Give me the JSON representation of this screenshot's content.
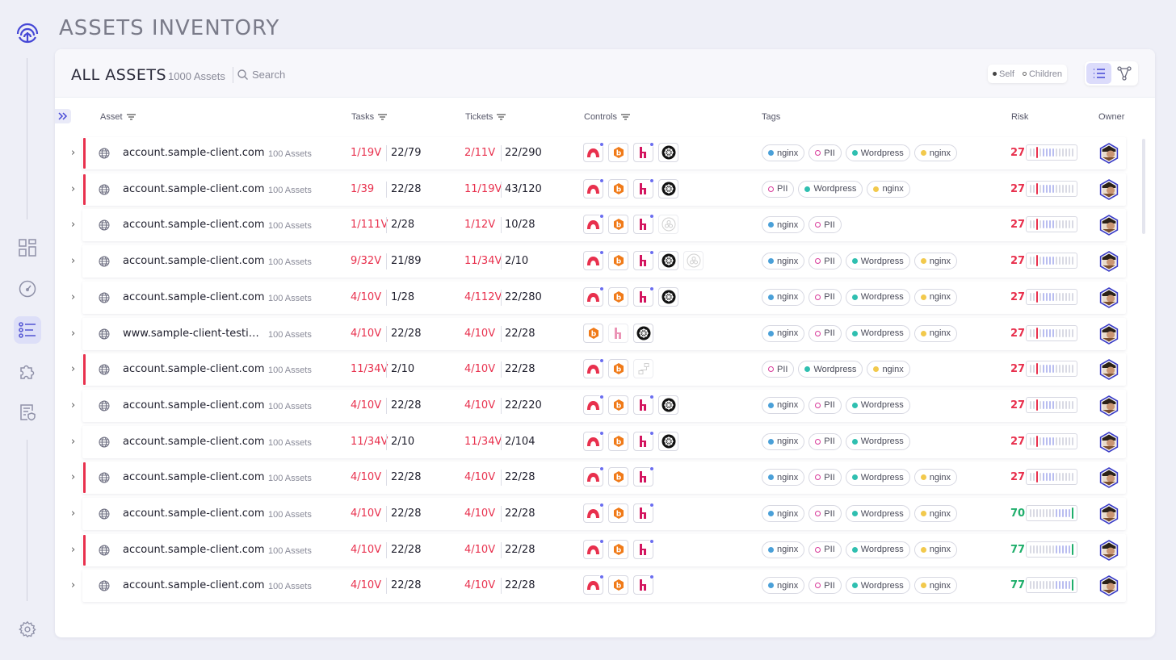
{
  "page": {
    "title": "ASSETS INVENTORY"
  },
  "card": {
    "title": "ALL ASSETS",
    "count": "1000 Assets",
    "search_label": "Search",
    "scope": {
      "self": "Self",
      "children": "Children"
    },
    "view": {
      "active": "list"
    }
  },
  "columns": {
    "asset": "Asset",
    "tasks": "Tasks",
    "tickets": "Tickets",
    "controls": "Controls",
    "tags": "Tags",
    "risk": "Risk",
    "owner": "Owner"
  },
  "sidebar": {
    "items": [
      {
        "icon": "dashboard-grid-icon"
      },
      {
        "icon": "speedometer-icon"
      },
      {
        "icon": "list-icon",
        "active": true
      },
      {
        "icon": "puzzle-icon"
      },
      {
        "icon": "shield-document-icon"
      }
    ],
    "footer_icon": "settings-gear-icon"
  },
  "colors": {
    "accent": "#6a6df0",
    "danger": "#e8304d",
    "success": "#1fae6b",
    "tag_nginx": "#4aa0d8",
    "tag_wordpress": "#2fbfb0",
    "tag_nginx_alt": "#f2c94c",
    "tag_pii": "#d93a9a"
  },
  "rows": [
    {
      "flag": true,
      "name": "account.sample-client.com",
      "count": "100 Assets",
      "task_red": "1/19V",
      "task_total": "22/79",
      "ticket_red": "2/11V",
      "ticket_total": "22/290",
      "controls": [
        "redhat",
        "bugcrowd",
        "hackerone",
        "kubernetes"
      ],
      "tags": [
        [
          "nginx",
          "#4aa0d8"
        ],
        [
          "PII",
          "pii"
        ],
        [
          "Wordpress",
          "#2fbfb0"
        ],
        [
          "nginx",
          "#f2c94c"
        ]
      ],
      "risk": "27",
      "risk_level": "high"
    },
    {
      "flag": true,
      "name": "account.sample-client.com",
      "count": "100 Assets",
      "task_red": "1/39",
      "task_total": "22/28",
      "ticket_red": "11/19V",
      "ticket_total": "43/120",
      "controls": [
        "redhat",
        "bugcrowd",
        "hackerone",
        "kubernetes"
      ],
      "tags": [
        [
          "PII",
          "pii"
        ],
        [
          "Wordpress",
          "#2fbfb0"
        ],
        [
          "nginx",
          "#f2c94c"
        ]
      ],
      "risk": "27",
      "risk_level": "high"
    },
    {
      "flag": false,
      "name": "account.sample-client.com",
      "count": "100 Assets",
      "task_red": "1/111V",
      "task_total": "2/28",
      "ticket_red": "1/12V",
      "ticket_total": "10/28",
      "controls": [
        "redhat",
        "bugcrowd",
        "hackerone",
        "other-dim"
      ],
      "tags": [
        [
          "nginx",
          "#4aa0d8"
        ],
        [
          "PII",
          "pii"
        ]
      ],
      "risk": "27",
      "risk_level": "high"
    },
    {
      "flag": false,
      "name": "account.sample-client.com",
      "count": "100 Assets",
      "task_red": "9/32V",
      "task_total": "21/89",
      "ticket_red": "11/34V",
      "ticket_total": "2/10",
      "controls": [
        "redhat",
        "bugcrowd",
        "hackerone",
        "kubernetes",
        "other-dim"
      ],
      "tags": [
        [
          "nginx",
          "#4aa0d8"
        ],
        [
          "PII",
          "pii"
        ],
        [
          "Wordpress",
          "#2fbfb0"
        ],
        [
          "nginx",
          "#f2c94c"
        ]
      ],
      "risk": "27",
      "risk_level": "high"
    },
    {
      "flag": false,
      "name": "account.sample-client.com",
      "count": "100 Assets",
      "task_red": "4/10V",
      "task_total": "1/28",
      "ticket_red": "4/112V",
      "ticket_total": "22/280",
      "controls": [
        "redhat",
        "bugcrowd",
        "hackerone",
        "kubernetes"
      ],
      "tags": [
        [
          "nginx",
          "#4aa0d8"
        ],
        [
          "PII",
          "pii"
        ],
        [
          "Wordpress",
          "#2fbfb0"
        ],
        [
          "nginx",
          "#f2c94c"
        ]
      ],
      "risk": "27",
      "risk_level": "high"
    },
    {
      "flag": false,
      "name": "www.sample-client-testin…",
      "count": "100 Assets",
      "task_red": "4/10V",
      "task_total": "22/28",
      "ticket_red": "4/10V",
      "ticket_total": "22/28",
      "controls": [
        "bugcrowd",
        "hackerone-dim",
        "kubernetes"
      ],
      "tags": [
        [
          "nginx",
          "#4aa0d8"
        ],
        [
          "PII",
          "pii"
        ],
        [
          "Wordpress",
          "#2fbfb0"
        ],
        [
          "nginx",
          "#f2c94c"
        ]
      ],
      "risk": "27",
      "risk_level": "high"
    },
    {
      "flag": true,
      "name": "account.sample-client.com",
      "count": "100 Assets",
      "task_red": "11/34V",
      "task_total": "2/10",
      "ticket_red": "4/10V",
      "ticket_total": "22/28",
      "controls": [
        "redhat",
        "bugcrowd",
        "flow-dim"
      ],
      "tags": [
        [
          "PII",
          "pii"
        ],
        [
          "Wordpress",
          "#2fbfb0"
        ],
        [
          "nginx",
          "#f2c94c"
        ]
      ],
      "risk": "27",
      "risk_level": "high"
    },
    {
      "flag": false,
      "name": "account.sample-client.com",
      "count": "100 Assets",
      "task_red": "4/10V",
      "task_total": "22/28",
      "ticket_red": "4/10V",
      "ticket_total": "22/220",
      "controls": [
        "redhat",
        "bugcrowd",
        "hackerone",
        "kubernetes"
      ],
      "tags": [
        [
          "nginx",
          "#4aa0d8"
        ],
        [
          "PII",
          "pii"
        ],
        [
          "Wordpress",
          "#2fbfb0"
        ]
      ],
      "risk": "27",
      "risk_level": "high"
    },
    {
      "flag": false,
      "name": "account.sample-client.com",
      "count": "100 Assets",
      "task_red": "11/34V",
      "task_total": "2/10",
      "ticket_red": "11/34V",
      "ticket_total": "2/104",
      "controls": [
        "redhat",
        "bugcrowd",
        "hackerone",
        "kubernetes"
      ],
      "tags": [
        [
          "nginx",
          "#4aa0d8"
        ],
        [
          "PII",
          "pii"
        ],
        [
          "Wordpress",
          "#2fbfb0"
        ]
      ],
      "risk": "27",
      "risk_level": "high"
    },
    {
      "flag": true,
      "name": "account.sample-client.com",
      "count": "100 Assets",
      "task_red": "4/10V",
      "task_total": "22/28",
      "ticket_red": "4/10V",
      "ticket_total": "22/28",
      "controls": [
        "redhat",
        "bugcrowd",
        "hackerone"
      ],
      "tags": [
        [
          "nginx",
          "#4aa0d8"
        ],
        [
          "PII",
          "pii"
        ],
        [
          "Wordpress",
          "#2fbfb0"
        ],
        [
          "nginx",
          "#f2c94c"
        ]
      ],
      "risk": "27",
      "risk_level": "high"
    },
    {
      "flag": false,
      "name": "account.sample-client.com",
      "count": "100 Assets",
      "task_red": "4/10V",
      "task_total": "22/28",
      "ticket_red": "4/10V",
      "ticket_total": "22/28",
      "controls": [
        "redhat",
        "bugcrowd",
        "hackerone"
      ],
      "tags": [
        [
          "nginx",
          "#4aa0d8"
        ],
        [
          "PII",
          "pii"
        ],
        [
          "Wordpress",
          "#2fbfb0"
        ],
        [
          "nginx",
          "#f2c94c"
        ]
      ],
      "risk": "70",
      "risk_level": "low"
    },
    {
      "flag": true,
      "name": "account.sample-client.com",
      "count": "100 Assets",
      "task_red": "4/10V",
      "task_total": "22/28",
      "ticket_red": "4/10V",
      "ticket_total": "22/28",
      "controls": [
        "redhat",
        "bugcrowd",
        "hackerone"
      ],
      "tags": [
        [
          "nginx",
          "#4aa0d8"
        ],
        [
          "PII",
          "pii"
        ],
        [
          "Wordpress",
          "#2fbfb0"
        ],
        [
          "nginx",
          "#f2c94c"
        ]
      ],
      "risk": "77",
      "risk_level": "low"
    },
    {
      "flag": false,
      "name": "account.sample-client.com",
      "count": "100 Assets",
      "task_red": "4/10V",
      "task_total": "22/28",
      "ticket_red": "4/10V",
      "ticket_total": "22/28",
      "controls": [
        "redhat",
        "bugcrowd",
        "hackerone"
      ],
      "tags": [
        [
          "nginx",
          "#4aa0d8"
        ],
        [
          "PII",
          "pii"
        ],
        [
          "Wordpress",
          "#2fbfb0"
        ],
        [
          "nginx",
          "#f2c94c"
        ]
      ],
      "risk": "77",
      "risk_level": "low"
    }
  ]
}
